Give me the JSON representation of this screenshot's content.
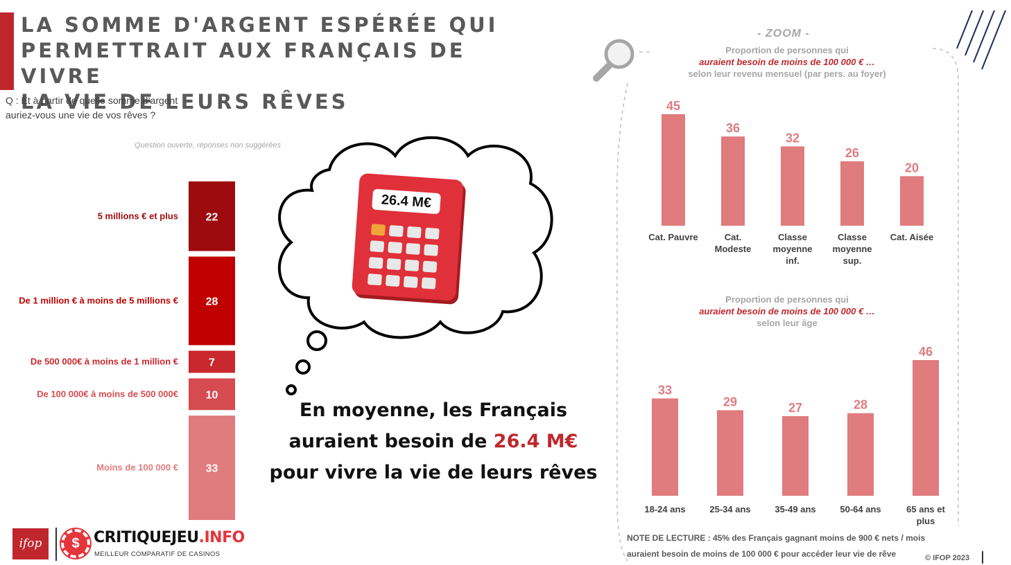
{
  "header": {
    "title_lines": [
      "LA SOMME D'ARGENT ESPÉRÉE QUI",
      "PERMETTRAIT AUX FRANÇAIS DE VIVRE",
      "LA VIE DE LEURS RÊVES"
    ],
    "question_lines": [
      "Q : Et à partir de quelle somme d’argent",
      "auriez-vous une vie de vos rêves ?"
    ],
    "question_note": "Question ouverte, réponses non suggérées"
  },
  "calculator": {
    "display": "26.4 M€"
  },
  "average": {
    "line1": "En moyenne, les Français",
    "line2_before": "auraient besoin de ",
    "line2_highlight": "26.4 M€",
    "line3": "pour vivre la vie de leurs rêves"
  },
  "zoom": {
    "title": "- ZOOM -",
    "income_sub": [
      "Proportion de personnes qui",
      "auraient besoin de moins de 100 000 € …",
      "selon leur revenu mensuel (par pers. au foyer)"
    ],
    "age_sub": [
      "Proportion de personnes qui",
      "auraient besoin de moins de 100 000 € …",
      "selon leur âge"
    ]
  },
  "note": {
    "line1": "NOTE DE LECTURE : 45% des Français gagnant moins de 900 € nets / mois",
    "line2": "auraient besoin de moins de 100 000 € pour accéder leur vie de rêve"
  },
  "footer": {
    "copyright": "© IFOP 2023",
    "ifop_logo": "ifop",
    "brand_name_a": "CRITIQUEJEU",
    "brand_name_b": ".INFO",
    "brand_tagline": "MEILLEUR COMPARATIF DE CASINOS",
    "brand_icon": "$"
  },
  "colors": {
    "accent": "#c0272d",
    "stack": [
      "#9e0b0f",
      "#c00000",
      "#c9282e",
      "#d64b4f",
      "#e07b7e"
    ],
    "zoom_bars": "#e07b7e"
  },
  "chart_data": [
    {
      "type": "bar",
      "orientation": "stacked-vertical",
      "categories": [
        "5 millions € et plus",
        "De 1 million € à moins de 5 millions €",
        "De 500 000€ à moins de 1 million €",
        "De 100 000€ à moins de 500 000€",
        "Moins de 100 000 €"
      ],
      "values": [
        22,
        28,
        7,
        10,
        33
      ],
      "unit": "%"
    },
    {
      "type": "bar",
      "categories": [
        [
          "Cat. Pauvre"
        ],
        [
          "Cat.",
          "Modeste"
        ],
        [
          "Classe",
          "moyenne",
          "inf."
        ],
        [
          "Classe",
          "moyenne",
          "sup."
        ],
        [
          "Cat. Aisée"
        ]
      ],
      "values": [
        45,
        36,
        32,
        26,
        20
      ],
      "ylim": [
        0,
        50
      ]
    },
    {
      "type": "bar",
      "categories": [
        [
          "18-24 ans"
        ],
        [
          "25-34 ans"
        ],
        [
          "35-49 ans"
        ],
        [
          "50-64 ans"
        ],
        [
          "65 ans et",
          "plus"
        ]
      ],
      "values": [
        33,
        29,
        27,
        28,
        46
      ],
      "ylim": [
        0,
        50
      ]
    }
  ]
}
